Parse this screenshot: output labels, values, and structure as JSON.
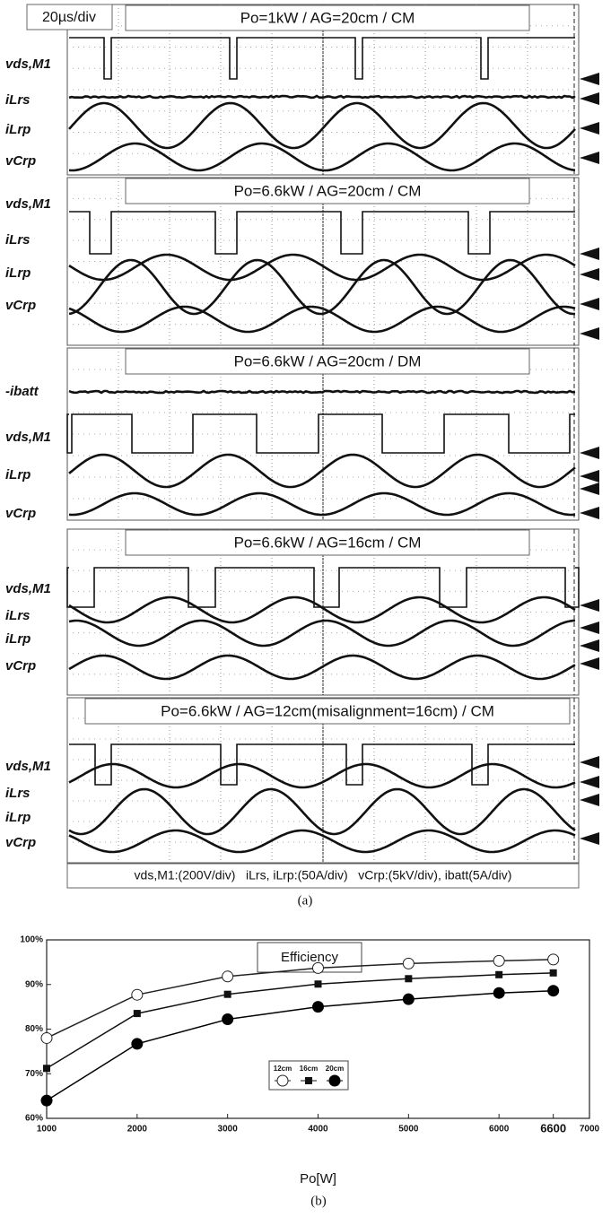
{
  "scope": {
    "timebase": "20µs/div",
    "panels": [
      {
        "title": "Po=1kW / AG=20cm / CM",
        "signals": [
          "vds,M1",
          "iLrs",
          "iLrp",
          "vCrp"
        ]
      },
      {
        "title": "Po=6.6kW / AG=20cm / CM",
        "signals": [
          "vds,M1",
          "iLrs",
          "iLrp",
          "vCrp"
        ]
      },
      {
        "title": "Po=6.6kW / AG=20cm / DM",
        "signals": [
          "-ibatt",
          "vds,M1",
          "iLrp",
          "vCrp"
        ]
      },
      {
        "title": "Po=6.6kW / AG=16cm / CM",
        "signals": [
          "vds,M1",
          "iLrs",
          "iLrp",
          "vCrp"
        ]
      },
      {
        "title": "Po=6.6kW / AG=12cm(misalignment=16cm) / CM",
        "signals": [
          "vds,M1",
          "iLrs",
          "iLrp",
          "vCrp"
        ]
      }
    ],
    "scale_note": "vds,M1:(200V/div)   iLrs, iLrp:(50A/div)   vCrp:(5kV/div), ibatt(5A/div)",
    "caption": "(a)"
  },
  "chart_data": {
    "type": "line",
    "title": "Efficiency",
    "x_label": "Po[W]",
    "caption": "(b)",
    "x": [
      1000,
      2000,
      3000,
      4000,
      5000,
      6000,
      6600
    ],
    "series": [
      {
        "name": "12cm",
        "marker": "open-circle",
        "color": "#222222",
        "values": [
          78,
          87.7,
          91.8,
          93.7,
          94.7,
          95.3,
          95.6
        ]
      },
      {
        "name": "16cm",
        "marker": "square",
        "color": "#111111",
        "values": [
          71.2,
          83.5,
          87.8,
          90.1,
          91.3,
          92.2,
          92.6
        ]
      },
      {
        "name": "20cm",
        "marker": "filled-circle",
        "color": "#000000",
        "values": [
          64,
          76.7,
          82.2,
          85,
          86.7,
          88.1,
          88.6
        ]
      }
    ],
    "xlim": [
      1000,
      7000
    ],
    "xticks": [
      1000,
      2000,
      3000,
      4000,
      5000,
      6000,
      6600,
      7000
    ],
    "ylim": [
      60,
      100
    ],
    "yticks": [
      {
        "value": 60,
        "label": "60%"
      },
      {
        "value": 70,
        "label": "70%"
      },
      {
        "value": 80,
        "label": "80%"
      },
      {
        "value": 90,
        "label": "90%"
      },
      {
        "value": 100,
        "label": "100%"
      }
    ]
  }
}
